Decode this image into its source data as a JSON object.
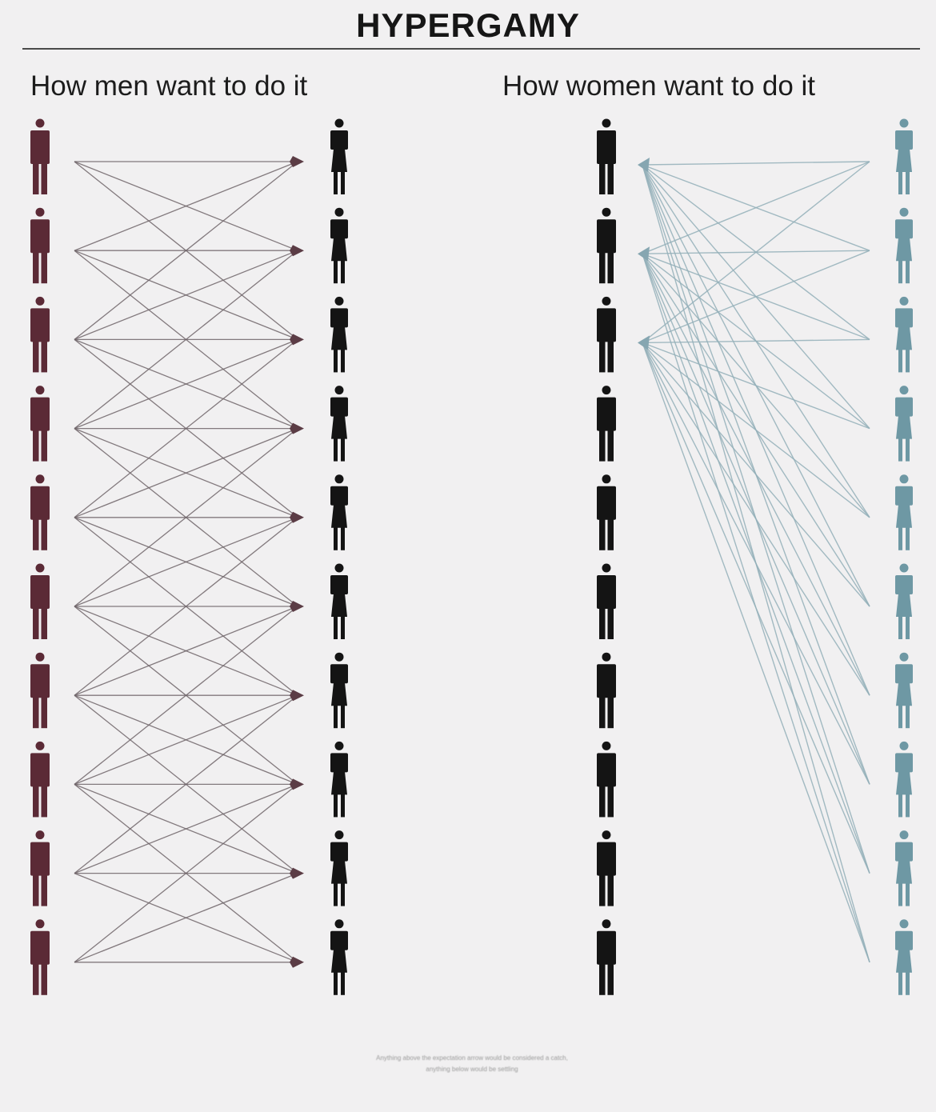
{
  "title": "HYPERGAMY",
  "left_panel": {
    "heading": "How men want to do it",
    "men_count": 10,
    "women_count": 10,
    "link_offsets": [
      -2,
      -1,
      0,
      1,
      2
    ],
    "men_color": "#5b2a36",
    "women_color": "#141414",
    "line_color": "#6e6468"
  },
  "right_panel": {
    "heading": "How women want to do it",
    "men_count": 10,
    "women_count": 10,
    "targeted_men": [
      0,
      1,
      2
    ],
    "men_color": "#141414",
    "women_color": "#6e98a4",
    "line_color": "#93afb9"
  },
  "footnote": {
    "line1": "Anything above the expectation arrow would be considered a catch,",
    "line2": "anything below would be settling"
  }
}
